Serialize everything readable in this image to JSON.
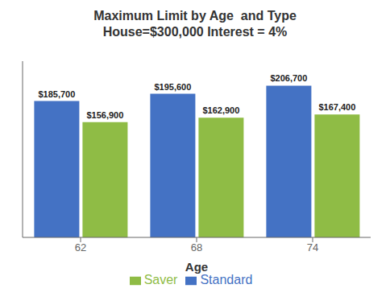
{
  "chart_data": {
    "type": "bar",
    "title": "Maximum Limit by Age  and Type",
    "subtitle": "House=$300,000 Interest = 4%",
    "xlabel": "Age",
    "categories": [
      "62",
      "68",
      "74"
    ],
    "series": [
      {
        "name": "Standard",
        "color": "#4472C4",
        "values": [
          185700,
          195600,
          206700
        ],
        "value_labels": [
          "$185,700",
          "$195,600",
          "$206,700"
        ]
      },
      {
        "name": "Saver",
        "color": "#8FBC45",
        "values": [
          156900,
          162900,
          167400
        ],
        "value_labels": [
          "$156,900",
          "$162,900",
          "$167,400"
        ]
      }
    ],
    "ylim": [
      0,
      240000
    ],
    "data_labels": true,
    "tick_labels": "x",
    "grid": false,
    "legend": "bottom"
  }
}
